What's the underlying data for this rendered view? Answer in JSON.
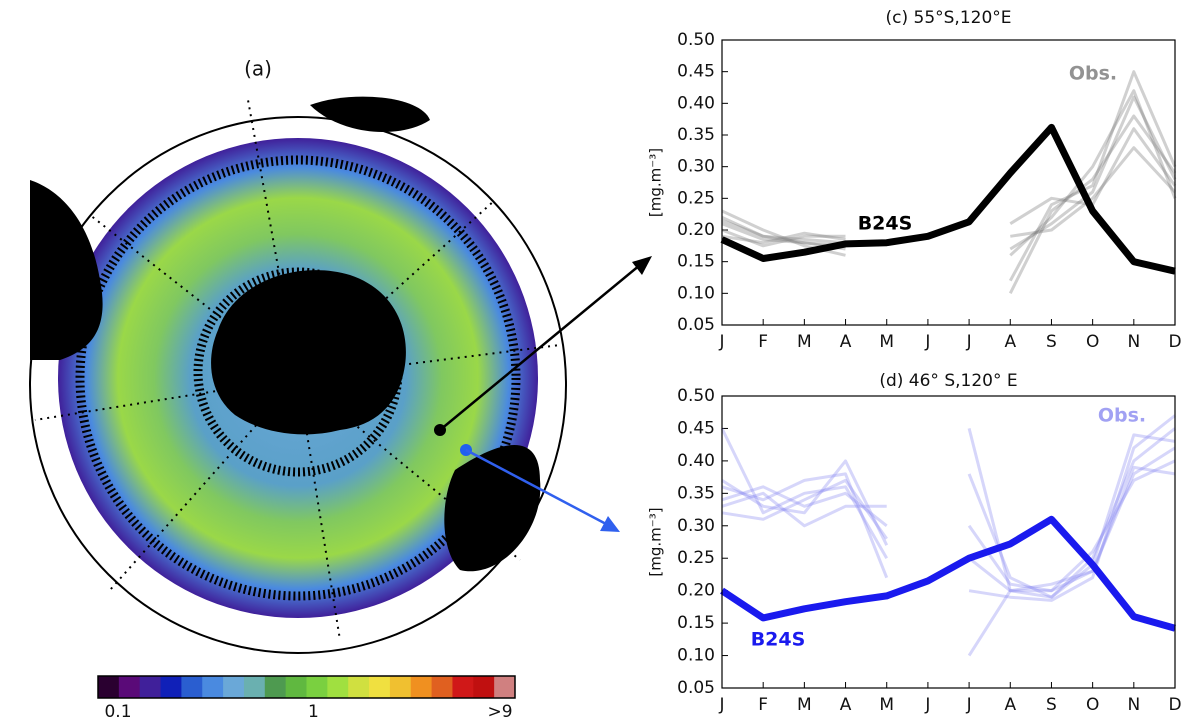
{
  "chart_data": [
    {
      "type": "map",
      "title": "(a)",
      "log": true,
      "colorbar": {
        "colors": [
          "#2a0030",
          "#5a0a78",
          "#40209a",
          "#1020b8",
          "#2a5ed0",
          "#4a8ae0",
          "#6aa8d8",
          "#6ab0b0",
          "#4e9a50",
          "#60b840",
          "#7ad040",
          "#a0e040",
          "#d0e040",
          "#f0e040",
          "#f0c030",
          "#f09020",
          "#e06020",
          "#d01818",
          "#c01010",
          "#d08080"
        ],
        "ticks": [
          0.1,
          1,
          {
            "value": 9,
            "label": ">9"
          }
        ]
      }
    },
    {
      "type": "line",
      "title": "(c) 55°S,120°E",
      "y_label": "[mg.m⁻³]",
      "categories": [
        "J",
        "F",
        "M",
        "A",
        "M",
        "J",
        "J",
        "A",
        "S",
        "O",
        "N",
        "D"
      ],
      "ylim": [
        0.05,
        0.5
      ],
      "yticks": [
        0.05,
        {
          "value": 0.1,
          "label": "0.10"
        },
        0.15,
        {
          "value": 0.2,
          "label": "0.20"
        },
        0.25,
        {
          "value": 0.3,
          "label": "0.30"
        },
        0.35,
        {
          "value": 0.4,
          "label": "0.40"
        },
        0.45,
        {
          "value": 0.5,
          "label": "0.50"
        }
      ],
      "series": [
        {
          "name": "Obs.",
          "color": "#777777",
          "values": [
            0.22,
            0.19,
            0.185,
            0.18,
            null,
            null,
            null,
            0.17,
            0.21,
            0.26,
            0.41,
            0.28
          ]
        },
        {
          "color": "#777777",
          "values": [
            0.21,
            0.185,
            0.18,
            0.175,
            null,
            null,
            null,
            0.12,
            0.24,
            0.27,
            0.45,
            0.3
          ]
        },
        {
          "color": "#777777",
          "values": [
            0.2,
            0.175,
            0.19,
            0.19,
            null,
            null,
            null,
            0.19,
            0.2,
            0.25,
            0.33,
            0.26
          ]
        },
        {
          "color": "#777777",
          "values": [
            0.23,
            0.2,
            0.175,
            0.16,
            null,
            null,
            null,
            0.1,
            0.23,
            0.28,
            0.38,
            0.29
          ]
        },
        {
          "color": "#777777",
          "values": [
            0.19,
            0.18,
            0.195,
            0.185,
            null,
            null,
            null,
            0.21,
            0.25,
            0.24,
            0.36,
            0.27
          ]
        },
        {
          "color": "#777777",
          "values": [
            0.215,
            0.19,
            0.18,
            0.17,
            null,
            null,
            null,
            0.16,
            0.22,
            0.3,
            0.42,
            0.25
          ]
        },
        {
          "name": "B24S",
          "color": "#000000",
          "values": [
            0.185,
            0.155,
            0.165,
            0.178,
            0.18,
            0.19,
            0.213,
            0.29,
            0.362,
            0.23,
            0.15,
            0.135
          ]
        }
      ]
    },
    {
      "type": "line",
      "title": "(d) 46° S,120° E",
      "y_label": "[mg.m⁻³]",
      "categories": [
        "J",
        "F",
        "M",
        "A",
        "M",
        "J",
        "J",
        "A",
        "S",
        "O",
        "N",
        "D"
      ],
      "ylim": [
        0.05,
        0.5
      ],
      "yticks": [
        0.05,
        {
          "value": 0.1,
          "label": "0.10"
        },
        0.15,
        {
          "value": 0.2,
          "label": "0.20"
        },
        0.25,
        {
          "value": 0.3,
          "label": "0.30"
        },
        0.35,
        {
          "value": 0.4,
          "label": "0.40"
        },
        0.45,
        {
          "value": 0.5,
          "label": "0.50"
        }
      ],
      "series": [
        {
          "name": "Obs.",
          "color": "#8a8af0",
          "values": [
            0.37,
            0.33,
            0.32,
            0.4,
            0.27,
            null,
            0.45,
            0.2,
            0.19,
            0.25,
            0.4,
            0.45
          ]
        },
        {
          "color": "#8a8af0",
          "values": [
            0.34,
            0.36,
            0.33,
            0.35,
            0.3,
            null,
            0.3,
            0.21,
            0.2,
            0.23,
            0.38,
            0.42
          ]
        },
        {
          "color": "#8a8af0",
          "values": [
            0.45,
            0.32,
            0.35,
            0.36,
            0.25,
            null,
            0.2,
            0.19,
            0.185,
            0.22,
            0.42,
            0.47
          ]
        },
        {
          "color": "#8a8af0",
          "values": [
            0.33,
            0.35,
            0.3,
            0.33,
            0.33,
            null,
            0.1,
            0.2,
            0.2,
            0.26,
            0.37,
            0.4
          ]
        },
        {
          "color": "#8a8af0",
          "values": [
            0.36,
            0.34,
            0.37,
            0.38,
            0.22,
            null,
            0.38,
            0.22,
            0.19,
            0.24,
            0.44,
            0.43
          ]
        },
        {
          "color": "#8a8af0",
          "values": [
            0.32,
            0.31,
            0.34,
            0.37,
            0.28,
            null,
            0.25,
            0.2,
            0.21,
            0.23,
            0.39,
            0.38
          ]
        },
        {
          "name": "B24S",
          "color": "#1a1aee",
          "values": [
            0.2,
            0.158,
            0.172,
            0.183,
            0.192,
            0.215,
            0.25,
            0.272,
            0.31,
            0.24,
            0.16,
            0.142
          ]
        }
      ]
    }
  ]
}
